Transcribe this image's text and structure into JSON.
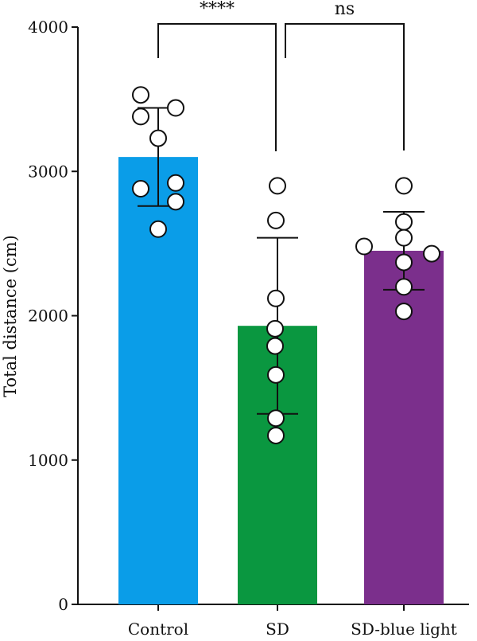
{
  "chart_data": {
    "type": "bar",
    "title": "",
    "xlabel": "",
    "ylabel": "Total distance (cm)",
    "ylim": [
      0,
      4000
    ],
    "yticks": [
      0,
      1000,
      2000,
      3000,
      4000
    ],
    "grid": false,
    "legend": "none",
    "categories": [
      "Control",
      "SD",
      "SD-blue light"
    ],
    "values": [
      3100,
      1930,
      2450
    ],
    "error": [
      340,
      610,
      270
    ],
    "colors": [
      "#0a9de8",
      "#0a9740",
      "#7b2f8c"
    ],
    "points": [
      [
        3530,
        3440,
        3380,
        3230,
        2920,
        2880,
        2790,
        2600
      ],
      [
        2900,
        2660,
        2120,
        1910,
        1790,
        1590,
        1290,
        1170
      ],
      [
        2900,
        2650,
        2540,
        2480,
        2430,
        2370,
        2200,
        2030
      ]
    ],
    "comparisons": [
      {
        "from": "Control",
        "to": "SD",
        "label": "****"
      },
      {
        "from": "SD",
        "to": "SD-blue light",
        "label": "ns"
      }
    ]
  }
}
